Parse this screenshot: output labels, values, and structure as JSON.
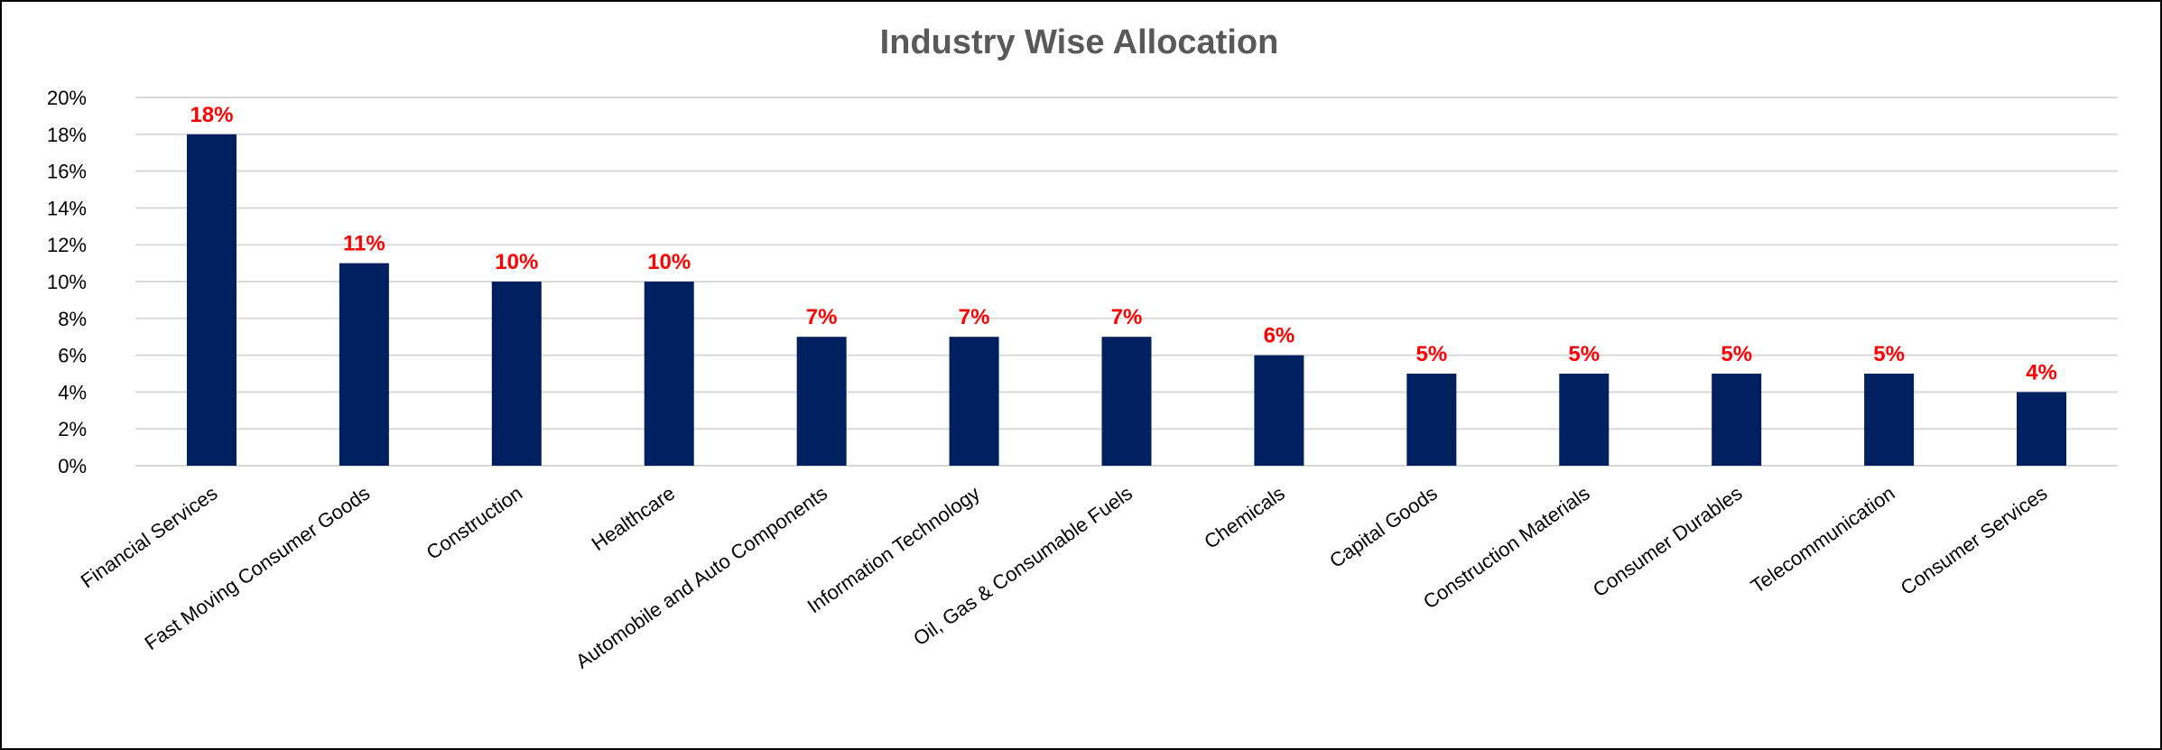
{
  "chart_data": {
    "type": "bar",
    "title": "Industry Wise Allocation",
    "xlabel": "",
    "ylabel": "",
    "ylim": [
      0,
      20
    ],
    "y_ticks": [
      "0%",
      "2%",
      "4%",
      "6%",
      "8%",
      "10%",
      "12%",
      "14%",
      "16%",
      "18%",
      "20%"
    ],
    "grid": true,
    "categories": [
      "Financial Services",
      "Fast Moving Consumer Goods",
      "Construction",
      "Healthcare",
      "Automobile and Auto Components",
      "Information Technology",
      "Oil, Gas & Consumable Fuels",
      "Chemicals",
      "Capital Goods",
      "Construction Materials",
      "Consumer Durables",
      "Telecommunication",
      "Consumer Services"
    ],
    "values": [
      18,
      11,
      10,
      10,
      7,
      7,
      7,
      6,
      5,
      5,
      5,
      5,
      4
    ],
    "data_labels": [
      "18%",
      "11%",
      "10%",
      "10%",
      "7%",
      "7%",
      "7%",
      "6%",
      "5%",
      "5%",
      "5%",
      "5%",
      "4%"
    ],
    "colors": {
      "bar": "#002060",
      "data_label": "#ff0000",
      "grid": "#d9d9d9",
      "title": "#595959"
    }
  }
}
